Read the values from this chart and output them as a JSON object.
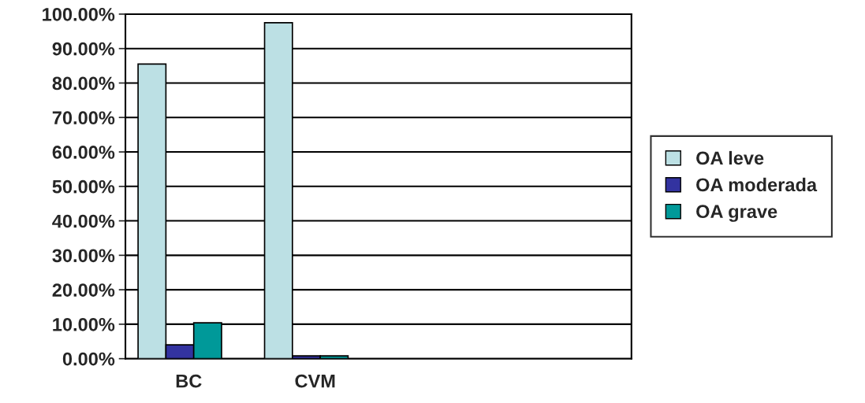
{
  "chart_data": {
    "type": "bar",
    "categories": [
      "BC",
      "CVM",
      null,
      null
    ],
    "series": [
      {
        "name": "OA leve",
        "color": "#bce0e4",
        "values": [
          85.5,
          97.5,
          null,
          null
        ]
      },
      {
        "name": "OA moderada",
        "color": "#3333a0",
        "values": [
          4.0,
          0.8,
          null,
          null
        ]
      },
      {
        "name": "OA grave",
        "color": "#009999",
        "values": [
          10.4,
          0.8,
          null,
          null
        ]
      }
    ],
    "ylim": [
      0,
      100
    ],
    "yticks": [
      {
        "value": 0,
        "label": "0.00%"
      },
      {
        "value": 10,
        "label": "10.00%"
      },
      {
        "value": 20,
        "label": "20.00%"
      },
      {
        "value": 30,
        "label": "30.00%"
      },
      {
        "value": 40,
        "label": "40.00%"
      },
      {
        "value": 50,
        "label": "50.00%"
      },
      {
        "value": 60,
        "label": "60.00%"
      },
      {
        "value": 70,
        "label": "70.00%"
      },
      {
        "value": 80,
        "label": "80.00%"
      },
      {
        "value": 90,
        "label": "90.00%"
      },
      {
        "value": 100,
        "label": "100.00%"
      }
    ],
    "grid": "y",
    "legend": "right"
  }
}
